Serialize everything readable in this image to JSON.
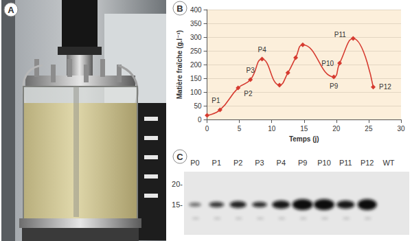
{
  "chart_data": {
    "type": "line",
    "x": [
      0,
      2,
      4.8,
      6.7,
      8.5,
      11.2,
      12.5,
      13.7,
      14.8,
      19.6,
      20.5,
      22.6,
      25.7
    ],
    "values": [
      15,
      35,
      115,
      145,
      220,
      125,
      170,
      225,
      272,
      155,
      205,
      295,
      118
    ],
    "annotations": [
      null,
      "P1",
      "P2",
      "P3",
      "P4",
      null,
      null,
      null,
      null,
      "P9",
      "P10",
      "P11",
      "P12"
    ],
    "color": "#d63b30",
    "marker": "diamond",
    "xlabel": "Temps (j)",
    "ylabel": "Matière fraîche (g.l⁻¹)",
    "xlim": [
      0,
      30
    ],
    "ylim": [
      0,
      400
    ],
    "xticks": [
      0,
      5,
      10,
      15,
      20,
      25,
      30
    ],
    "yticks": [
      0,
      50,
      100,
      150,
      200,
      250,
      300,
      350,
      400
    ],
    "grid": true
  },
  "panels": {
    "photo": {
      "label": "A"
    },
    "chart": {
      "label": "B"
    },
    "blot": {
      "label": "C",
      "lanes": [
        "P0",
        "P1",
        "P2",
        "P3",
        "P4",
        "P9",
        "P10",
        "P11",
        "P12",
        "WT"
      ],
      "markers": [
        {
          "value": 20,
          "label": "20-"
        },
        {
          "value": 15,
          "label": "15-"
        }
      ]
    }
  }
}
